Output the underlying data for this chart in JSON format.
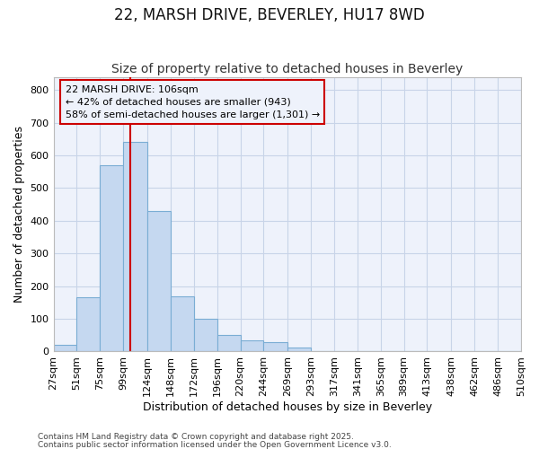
{
  "title": "22, MARSH DRIVE, BEVERLEY, HU17 8WD",
  "subtitle": "Size of property relative to detached houses in Beverley",
  "xlabel": "Distribution of detached houses by size in Beverley",
  "ylabel": "Number of detached properties",
  "bin_edges": [
    27,
    51,
    75,
    99,
    124,
    148,
    172,
    196,
    220,
    244,
    269,
    293,
    317,
    341,
    365,
    389,
    413,
    438,
    462,
    486,
    510
  ],
  "bar_heights": [
    20,
    165,
    570,
    640,
    430,
    170,
    100,
    50,
    35,
    30,
    12,
    0,
    0,
    0,
    0,
    0,
    0,
    0,
    0,
    2
  ],
  "bar_color": "#c5d8f0",
  "bar_edgecolor": "#7aadd4",
  "vline_x": 106,
  "vline_color": "#cc0000",
  "ylim": [
    0,
    840
  ],
  "yticks": [
    0,
    100,
    200,
    300,
    400,
    500,
    600,
    700,
    800
  ],
  "annotation_title": "22 MARSH DRIVE: 106sqm",
  "annotation_line1": "← 42% of detached houses are smaller (943)",
  "annotation_line2": "58% of semi-detached houses are larger (1,301) →",
  "annotation_box_color": "#cc0000",
  "footer_line1": "Contains HM Land Registry data © Crown copyright and database right 2025.",
  "footer_line2": "Contains public sector information licensed under the Open Government Licence v3.0.",
  "bg_color": "#ffffff",
  "plot_bg_color": "#eef2fb",
  "grid_color": "#c8d4e8",
  "title_fontsize": 12,
  "subtitle_fontsize": 10,
  "tick_label_fontsize": 8,
  "ylabel_fontsize": 9,
  "xlabel_fontsize": 9,
  "annotation_fontsize": 8
}
